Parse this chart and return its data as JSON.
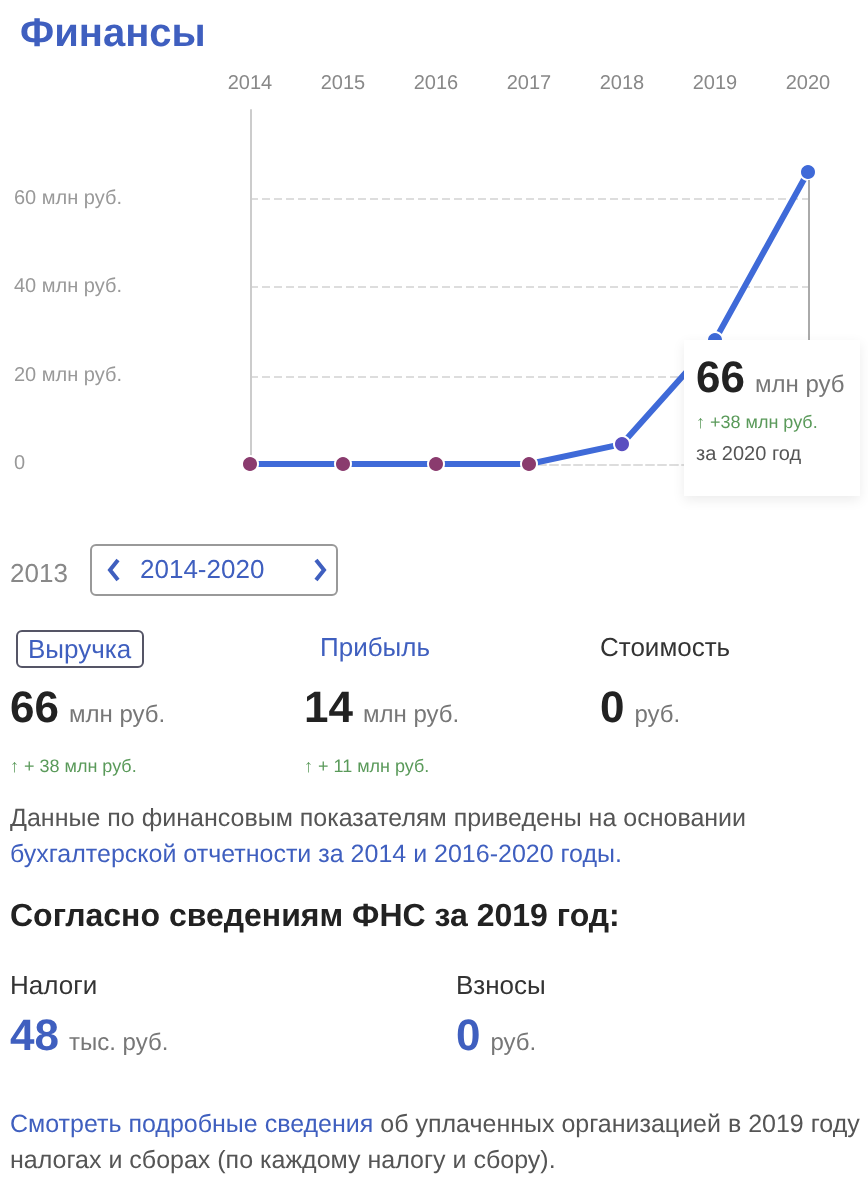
{
  "chart_data": [
    {
      "type": "line",
      "title": "Финансы",
      "categories": [
        "2014",
        "2015",
        "2016",
        "2017",
        "2018",
        "2019",
        "2020"
      ],
      "values": [
        0,
        0,
        0,
        0,
        4.5,
        28,
        66
      ],
      "color": "#3f6ad8",
      "colors": [
        "#8a3b6e",
        "#8a3b6e",
        "#8a3b6e",
        "#8a3b6e",
        "#5a4fc0",
        "#3f6ad8",
        "#3f6ad8"
      ],
      "ylim": [
        0,
        80
      ],
      "yticks": [
        0,
        {
          "value": 20,
          "label": "20 млн руб."
        },
        {
          "value": 40,
          "label": "40 млн руб."
        },
        {
          "value": 60,
          "label": "60 млн руб."
        }
      ],
      "grid": "y",
      "marker": "circle",
      "line_style": "solid",
      "annotations": [
        "66",
        "млн руб",
        "↑ +38 млн руб.",
        "за 2020 год"
      ]
    },
    {
      "type": "other",
      "annotations": [
        "2013",
        "2014-2020",
        "Выручка",
        "Прибыль",
        "Стоимость",
        "66",
        "млн руб.",
        "14",
        "млн руб.",
        "0",
        "руб.",
        "↑ + 38 млн руб.",
        "↑ + 11 млн руб.",
        "Данные по финансовым показателям приведены на основании",
        "бухгалтерской отчетности за 2014 и 2016-2020 годы.",
        "Согласно сведениям ФНС за 2019 год:",
        "Налоги",
        "Взносы",
        "48",
        "тыс. руб.",
        "0",
        "руб.",
        "Смотреть подробные сведения",
        "об уплаченных организацией в 2019 году налогах и сборах (по каждому налогу и сбору)."
      ]
    }
  ]
}
